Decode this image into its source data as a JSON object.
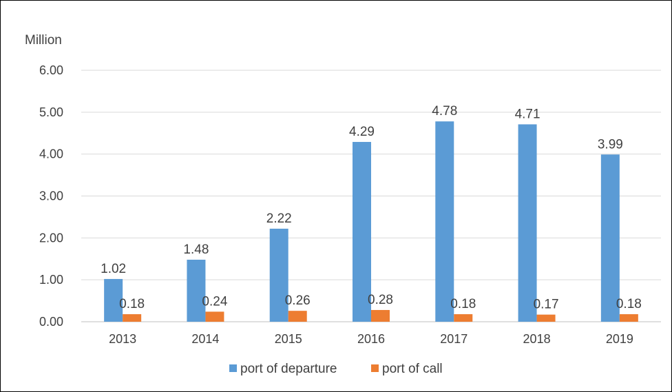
{
  "chart_data": {
    "type": "bar",
    "unit_label": "Million",
    "categories": [
      "2013",
      "2014",
      "2015",
      "2016",
      "2017",
      "2018",
      "2019"
    ],
    "series": [
      {
        "name": "port of departure",
        "color": "#5B9BD5",
        "values": [
          1.02,
          1.48,
          2.22,
          4.29,
          4.78,
          4.71,
          3.99
        ]
      },
      {
        "name": "port of call",
        "color": "#ED7D31",
        "values": [
          0.18,
          0.24,
          0.26,
          0.28,
          0.18,
          0.17,
          0.18
        ]
      }
    ],
    "ylim": [
      0,
      6
    ],
    "yticks": [
      "0.00",
      "1.00",
      "2.00",
      "3.00",
      "4.00",
      "5.00",
      "6.00"
    ],
    "grid": true,
    "legend_position": "bottom",
    "data_labels": true,
    "gridline_color": "#D9D9D9"
  }
}
